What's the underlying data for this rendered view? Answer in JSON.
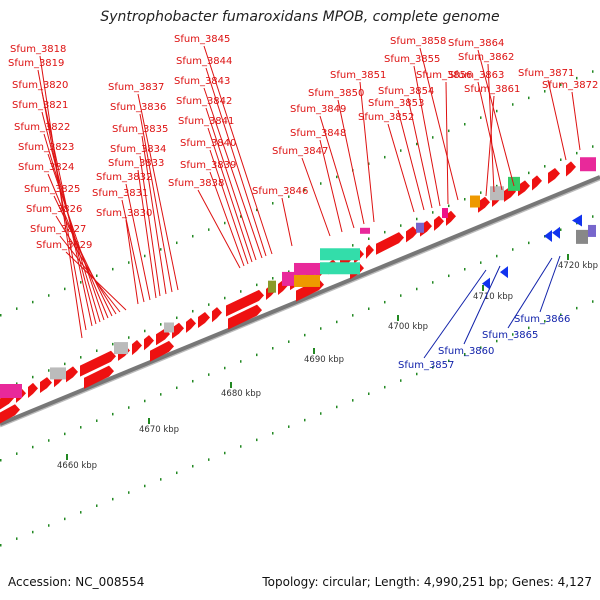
{
  "title": "Syntrophobacter fumaroxidans MPOB, complete genome",
  "footer": {
    "accession": "Accession: NC_008554",
    "summary": "Topology: circular; Length: 4,990,251 bp; Genes: 4,127"
  },
  "colors": {
    "forward": "#ee1111",
    "reverse": "#1133ee",
    "label_forward": "#dd1111",
    "label_reverse": "#1122aa",
    "backbone": "#777777",
    "tick_minor": "#228822",
    "scale_text": "#333333"
  },
  "scale_labels": [
    "4660 kbp",
    "4670 kbp",
    "4680 kbp",
    "4690 kbp",
    "4700 kbp",
    "4710 kbp",
    "4720 kbp"
  ],
  "gene_labels_forward": [
    "Sfum_3818",
    "Sfum_3819",
    "Sfum_3820",
    "Sfum_3821",
    "Sfum_3822",
    "Sfum_3823",
    "Sfum_3824",
    "Sfum_3825",
    "Sfum_3826",
    "Sfum_3827",
    "Sfum_3829",
    "Sfum_3830",
    "Sfum_3831",
    "Sfum_3832",
    "Sfum_3833",
    "Sfum_3834",
    "Sfum_3835",
    "Sfum_3836",
    "Sfum_3837",
    "Sfum_3838",
    "Sfum_3839",
    "Sfum_3840",
    "Sfum_3841",
    "Sfum_3842",
    "Sfum_3843",
    "Sfum_3844",
    "Sfum_3845",
    "Sfum_3846",
    "Sfum_3847",
    "Sfum_3848",
    "Sfum_3849",
    "Sfum_3850",
    "Sfum_3851",
    "Sfum_3852",
    "Sfum_3853",
    "Sfum_3854",
    "Sfum_3855",
    "Sfum_3856",
    "Sfum_3858",
    "Sfum_3861",
    "Sfum_3862",
    "Sfum_3863",
    "Sfum_3864",
    "Sfum_3871",
    "Sfum_3872"
  ],
  "gene_labels_reverse": [
    "Sfum_3857",
    "Sfum_3860",
    "Sfum_3865",
    "Sfum_3866"
  ]
}
